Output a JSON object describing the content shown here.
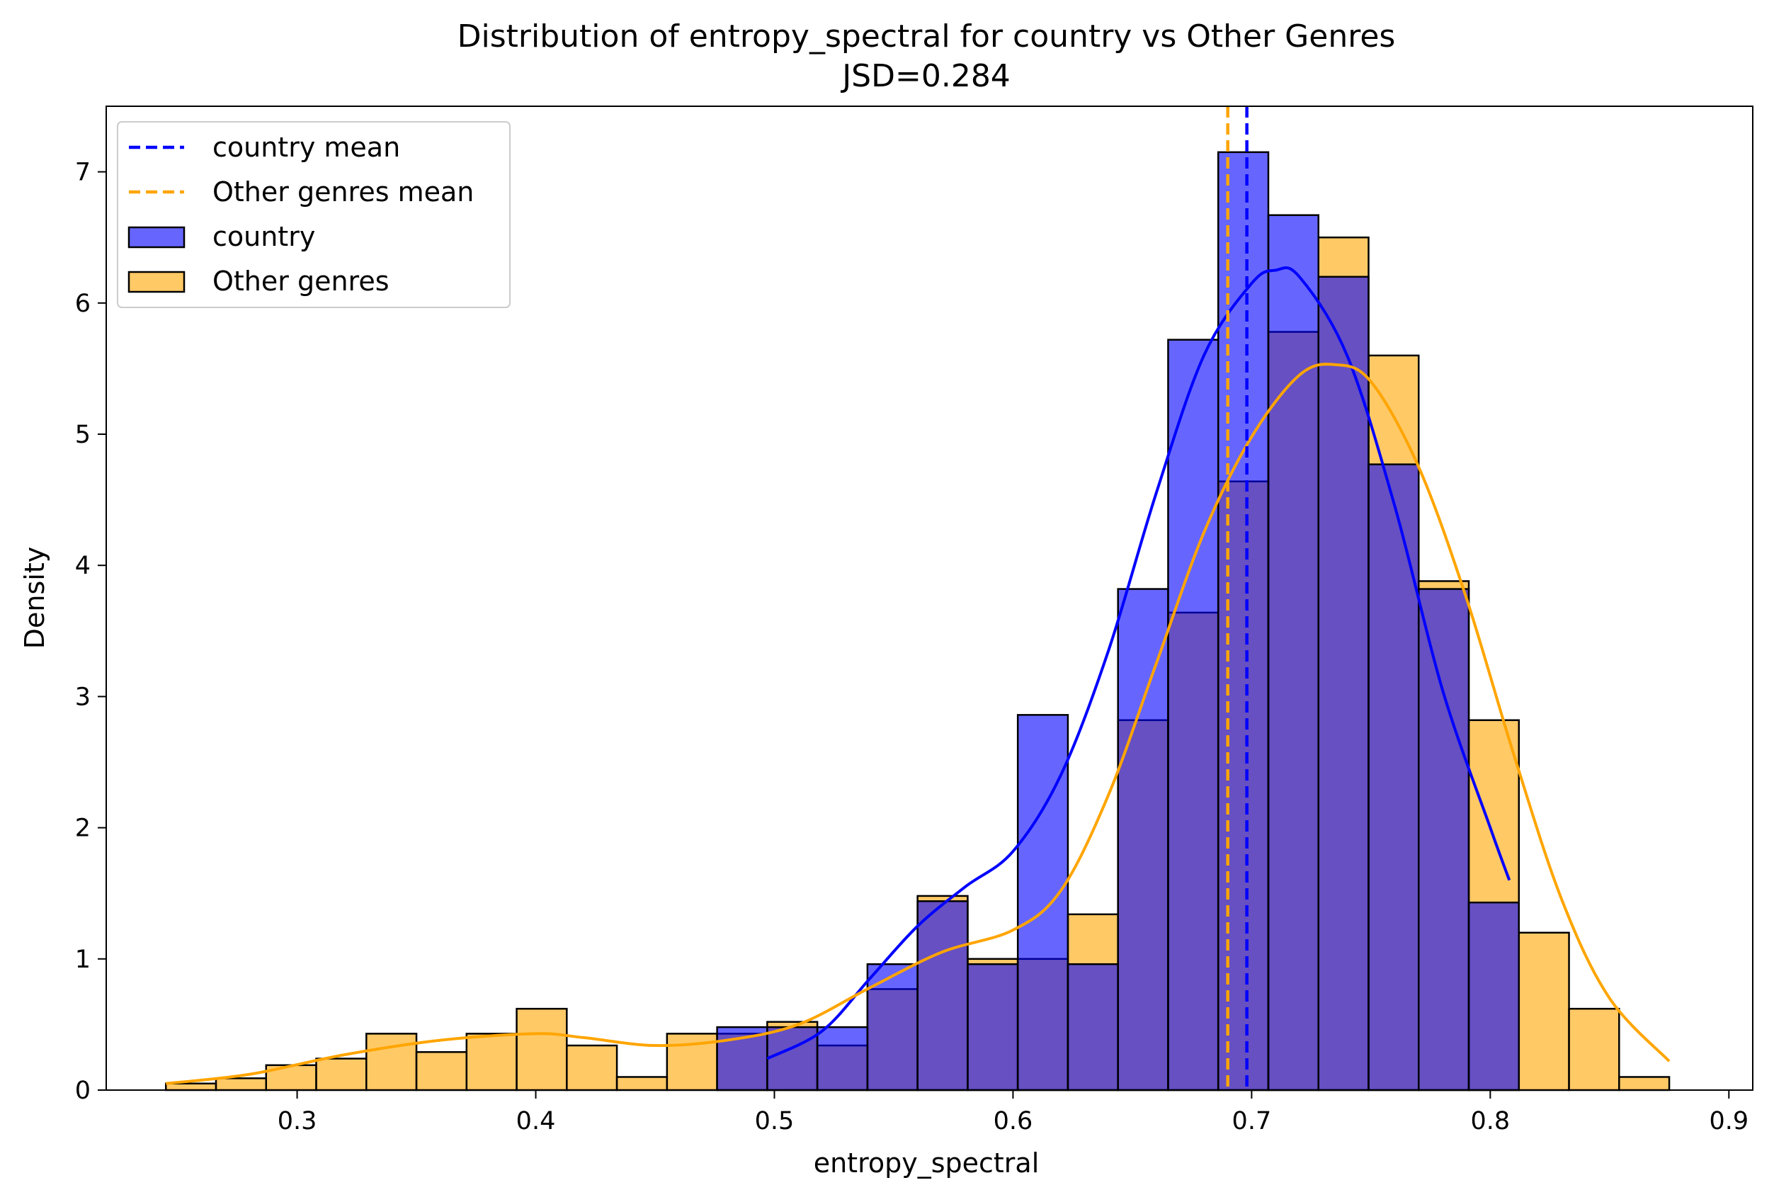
{
  "chart_data": {
    "type": "histogram",
    "title": "Distribution of entropy_spectral for country vs Other Genres",
    "subtitle": "JSD=0.284",
    "xlabel": "entropy_spectral",
    "ylabel": "Density",
    "xlim": [
      0.22,
      0.91
    ],
    "ylim": [
      0,
      7.5
    ],
    "x_ticks": [
      0.3,
      0.4,
      0.5,
      0.6,
      0.7,
      0.8,
      0.9
    ],
    "x_tick_labels": [
      "0.3",
      "0.4",
      "0.5",
      "0.6",
      "0.7",
      "0.8",
      "0.9"
    ],
    "y_ticks": [
      0,
      1,
      2,
      3,
      4,
      5,
      6,
      7
    ],
    "y_tick_labels": [
      "0",
      "1",
      "2",
      "3",
      "4",
      "5",
      "6",
      "7"
    ],
    "grid": false,
    "legend_position": "top-left",
    "bin_edges": [
      0.245,
      0.266,
      0.287,
      0.308,
      0.329,
      0.35,
      0.371,
      0.392,
      0.413,
      0.434,
      0.455,
      0.476,
      0.497,
      0.518,
      0.539,
      0.56,
      0.581,
      0.602,
      0.623,
      0.644,
      0.665,
      0.686,
      0.707,
      0.728,
      0.749,
      0.77,
      0.791,
      0.812,
      0.833,
      0.854,
      0.875
    ],
    "series": [
      {
        "name": "Other genres",
        "kind": "hist",
        "color": "#ffa500",
        "values": [
          0.05,
          0.09,
          0.19,
          0.24,
          0.43,
          0.29,
          0.43,
          0.62,
          0.34,
          0.1,
          0.43,
          0.43,
          0.52,
          0.34,
          0.77,
          1.48,
          1.0,
          1.0,
          1.34,
          2.82,
          3.64,
          4.64,
          5.78,
          6.5,
          5.6,
          3.88,
          2.82,
          1.2,
          0.62,
          0.1
        ]
      },
      {
        "name": "country",
        "kind": "hist",
        "color": "#0000ff",
        "values": [
          0,
          0,
          0,
          0,
          0,
          0,
          0,
          0,
          0,
          0,
          0,
          0.48,
          0.48,
          0.48,
          0.96,
          1.44,
          0.96,
          2.86,
          0.96,
          3.82,
          5.72,
          7.15,
          6.67,
          6.2,
          4.77,
          3.82,
          1.43,
          0,
          0,
          0
        ]
      },
      {
        "name": "country",
        "kind": "kde",
        "color": "#0000ff",
        "x": [
          0.497,
          0.52,
          0.54,
          0.56,
          0.58,
          0.6,
          0.62,
          0.64,
          0.66,
          0.68,
          0.7,
          0.71,
          0.72,
          0.74,
          0.76,
          0.78,
          0.8,
          0.808
        ],
        "y": [
          0.24,
          0.45,
          0.85,
          1.25,
          1.55,
          1.82,
          2.4,
          3.35,
          4.55,
          5.6,
          6.15,
          6.25,
          6.2,
          5.6,
          4.45,
          3.05,
          2.0,
          1.6
        ]
      },
      {
        "name": "Other genres",
        "kind": "kde",
        "color": "#ffa500",
        "x": [
          0.245,
          0.28,
          0.32,
          0.36,
          0.4,
          0.42,
          0.45,
          0.48,
          0.51,
          0.54,
          0.57,
          0.6,
          0.62,
          0.64,
          0.66,
          0.68,
          0.7,
          0.72,
          0.735,
          0.75,
          0.77,
          0.79,
          0.81,
          0.83,
          0.85,
          0.875
        ],
        "y": [
          0.05,
          0.12,
          0.27,
          0.38,
          0.43,
          0.4,
          0.34,
          0.38,
          0.5,
          0.78,
          1.05,
          1.22,
          1.52,
          2.25,
          3.25,
          4.25,
          4.98,
          5.45,
          5.53,
          5.4,
          4.75,
          3.75,
          2.55,
          1.45,
          0.7,
          0.22
        ]
      }
    ],
    "mean_lines": [
      {
        "name": "country mean",
        "x": 0.698,
        "color": "#0000ff"
      },
      {
        "name": "Other genres mean",
        "x": 0.69,
        "color": "#ffa500"
      }
    ],
    "legend": [
      {
        "label": "country mean",
        "kind": "dashed-line",
        "color": "#0000ff"
      },
      {
        "label": "Other genres mean",
        "kind": "dashed-line",
        "color": "#ffa500"
      },
      {
        "label": "country",
        "kind": "patch",
        "color": "#0000ff"
      },
      {
        "label": "Other genres",
        "kind": "patch",
        "color": "#ffa500"
      }
    ]
  }
}
